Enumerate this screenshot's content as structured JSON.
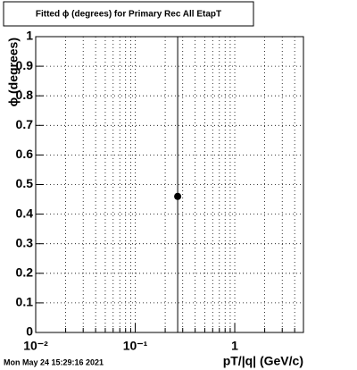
{
  "chart_data": {
    "type": "scatter",
    "title": "Fitted ϕ (degrees) for Primary Rec All EtapT",
    "x_label": "pT/|q| (GeV/c)",
    "y_label": "ϕ (degrees)",
    "footer": "Mon May 24 15:29:16 2021",
    "x": [
      0.267
    ],
    "values": [
      0.46
    ],
    "errors": [
      0.6
    ],
    "color": "#000000",
    "xscale": "log",
    "xlim": [
      0.01,
      4.9
    ],
    "ylim": [
      0,
      1
    ],
    "xticks": [
      {
        "value": 0.01,
        "label": "10⁻²"
      },
      {
        "value": 0.1,
        "label": "10⁻¹"
      },
      1
    ],
    "xticks_minor": [
      0.02,
      0.03,
      0.04,
      0.05,
      0.06,
      0.07,
      0.08,
      0.09,
      0.2,
      0.3,
      0.4,
      0.5,
      0.6,
      0.7,
      0.8,
      0.9,
      2,
      3,
      4
    ],
    "yticks": [
      0,
      0.1,
      0.2,
      0.3,
      0.4,
      0.5,
      0.6,
      0.7,
      0.8,
      0.9,
      1
    ],
    "grid": true
  }
}
